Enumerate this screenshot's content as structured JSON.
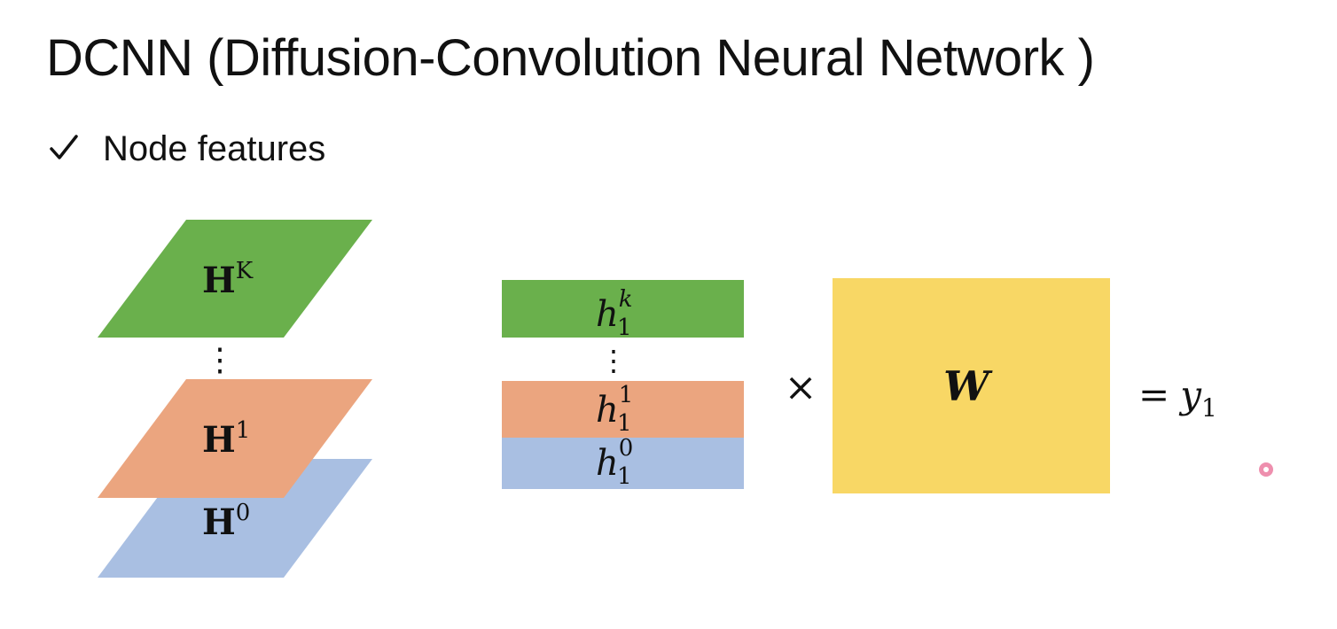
{
  "slide": {
    "title": "DCNN (Diffusion-Convolution Neural Network )",
    "bullet": {
      "icon": "check-icon",
      "text": "Node features"
    }
  },
  "diagram": {
    "layers": [
      {
        "base": "H",
        "sup": "K",
        "color": "#6ab04c"
      },
      {
        "base": "H",
        "sup": "1",
        "color": "#eba57f"
      },
      {
        "base": "H",
        "sup": "0",
        "color": "#a9bfe2"
      }
    ],
    "layer_dots": "⋮",
    "rows": [
      {
        "base": "h",
        "sub": "1",
        "sup": "k",
        "color": "#6ab04c"
      },
      {
        "base": "h",
        "sub": "1",
        "sup": "1",
        "color": "#eba57f"
      },
      {
        "base": "h",
        "sub": "1",
        "sup": "0",
        "color": "#a9bfe2"
      }
    ],
    "row_dots": "⋮",
    "times": "×",
    "weight": {
      "label": "W",
      "color": "#f8d765"
    },
    "equals": "=",
    "result": {
      "base": "y",
      "sub": "1"
    },
    "pointer_color": "#e0336b"
  }
}
